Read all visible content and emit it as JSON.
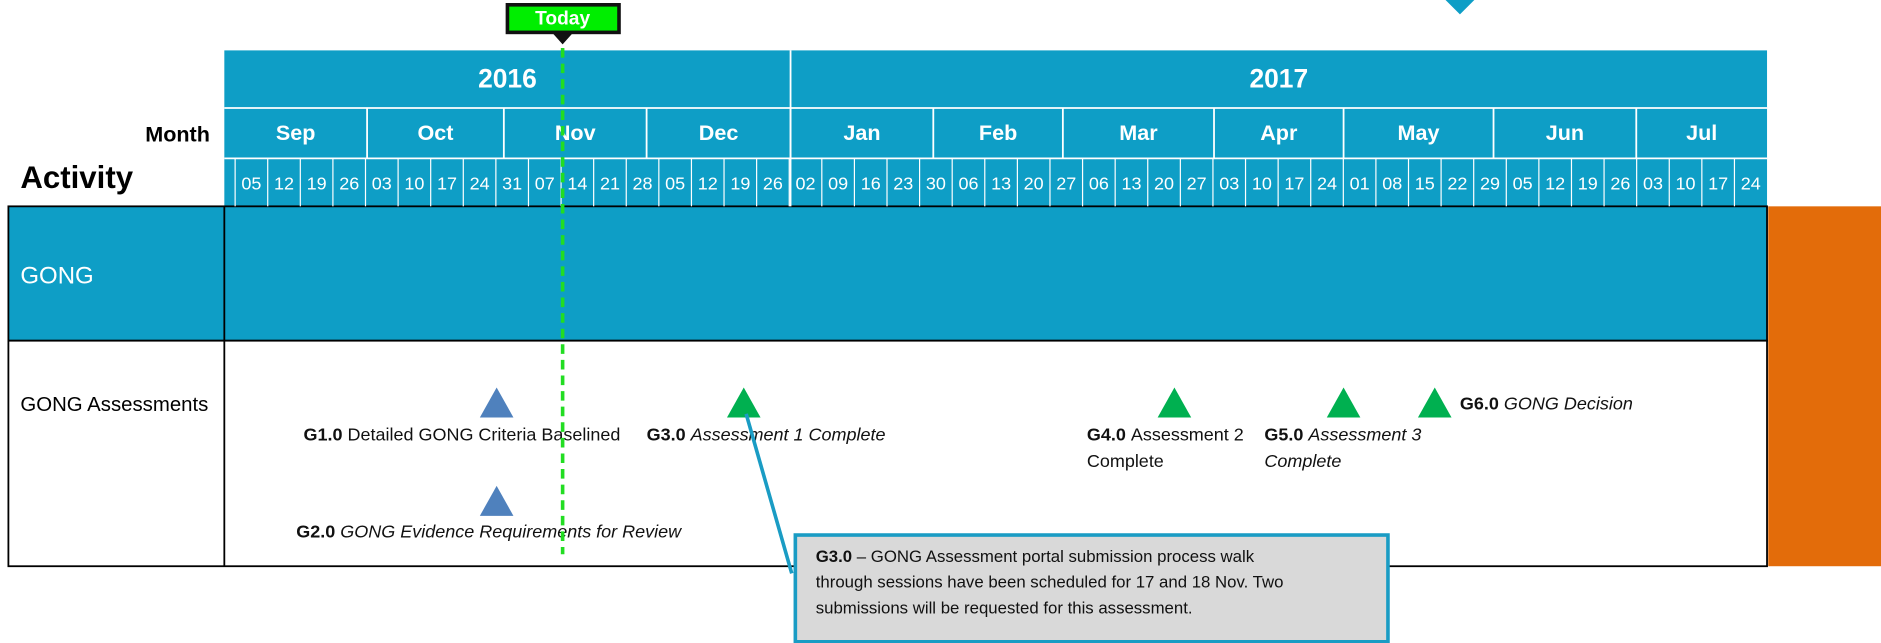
{
  "today_label": "Today",
  "header": {
    "month_label": "Month",
    "activity_label": "Activity",
    "years": [
      "2016",
      "2017"
    ],
    "months": [
      "Sep",
      "Oct",
      "Nov",
      "Dec",
      "Jan",
      "Feb",
      "Mar",
      "Apr",
      "May",
      "Jun",
      "Jul"
    ],
    "weeks": [
      "05",
      "12",
      "19",
      "26",
      "03",
      "10",
      "17",
      "24",
      "31",
      "07",
      "14",
      "21",
      "28",
      "05",
      "12",
      "19",
      "26",
      "02",
      "09",
      "16",
      "23",
      "30",
      "06",
      "13",
      "20",
      "27",
      "06",
      "13",
      "20",
      "27",
      "03",
      "10",
      "17",
      "24",
      "01",
      "08",
      "15",
      "22",
      "29",
      "05",
      "12",
      "19",
      "26",
      "03",
      "10",
      "17",
      "24"
    ]
  },
  "rows": [
    {
      "label": "GONG"
    },
    {
      "label": "GONG Assessments"
    }
  ],
  "milestones": [
    {
      "code": "G1.0",
      "lines": [
        "Detailed GONG Criteria Baselined"
      ]
    },
    {
      "code": "G2.0",
      "lines": [
        "GONG Evidence Requirements for Review"
      ]
    },
    {
      "code": "G3.0",
      "lines": [
        "Assessment 1 Complete"
      ]
    },
    {
      "code": "G4.0",
      "lines": [
        "Assessment 2",
        "Complete"
      ]
    },
    {
      "code": "G5.0",
      "lines": [
        "Assessment 3",
        "Complete"
      ]
    },
    {
      "code": "G6.0",
      "lines": [
        "GONG Decision"
      ]
    }
  ],
  "callout": {
    "code": "G3.0",
    "lines": [
      "– GONG Assessment portal submission process walk",
      "through sessions have been scheduled for 17 and 18 Nov. Two",
      "submissions will be requested for this assessment."
    ]
  }
}
